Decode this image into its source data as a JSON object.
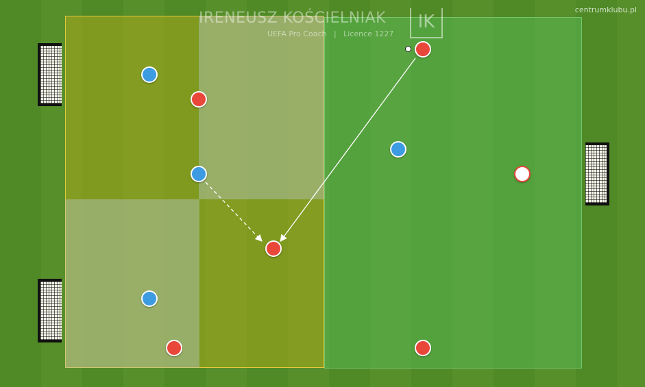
{
  "watermark": "centrumklubu.pl",
  "coach": {
    "name": "IRENEUSZ KOŚCIELNIAK",
    "subtitle": "UEFA Pro Coach   |   Licence 1227",
    "logo_text": "IK"
  },
  "colors": {
    "red_team": "#e8473a",
    "blue_team": "#3d9be2",
    "neutral": "#ffffff",
    "zone_yellow": "#a7a81a",
    "zone_light": "#aac4b0",
    "zone_green": "#4fae49",
    "boundary": "#e6c93a"
  },
  "icons": [
    "goal-net-icon",
    "ball-icon",
    "pass-arrow-icon",
    "run-arrow-icon"
  ]
}
